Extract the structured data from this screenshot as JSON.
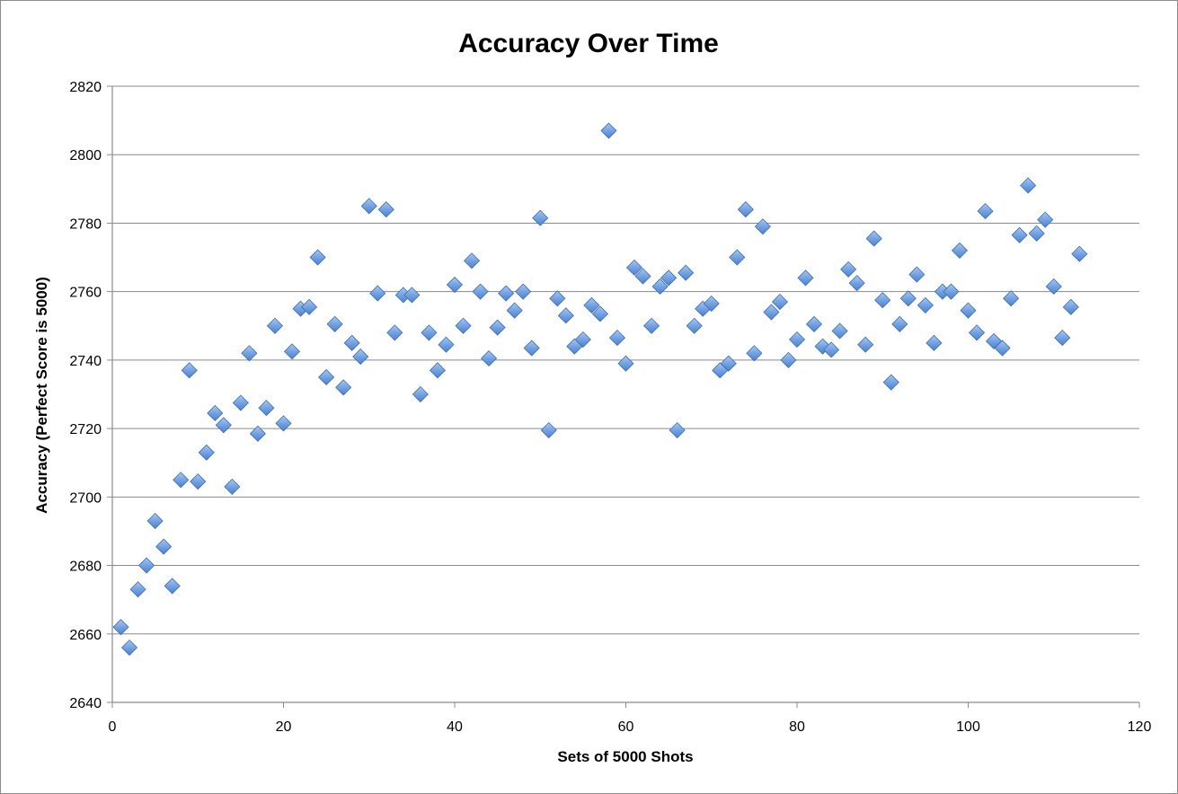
{
  "chart_data": {
    "type": "scatter",
    "title": "Accuracy Over Time",
    "xlabel": "Sets of 5000 Shots",
    "ylabel": "Accuracy (Perfect Score is 5000)",
    "xlim": [
      0,
      120
    ],
    "ylim": [
      2640,
      2820
    ],
    "xticks": [
      0,
      20,
      40,
      60,
      80,
      100,
      120
    ],
    "yticks": [
      2640,
      2660,
      2680,
      2700,
      2720,
      2740,
      2760,
      2780,
      2800,
      2820
    ],
    "grid": "horizontal",
    "legend": "none",
    "marker": "diamond",
    "marker_color": "#6f9fe0",
    "series": [
      {
        "x": [
          1,
          2,
          3,
          4,
          5,
          6,
          7,
          8,
          9,
          10,
          11,
          12,
          13,
          14,
          15,
          16,
          17,
          18,
          19,
          20,
          21,
          22,
          23,
          24,
          25,
          26,
          27,
          28,
          29,
          30,
          31,
          32,
          33,
          34,
          35,
          36,
          37,
          38,
          39,
          40,
          41,
          42,
          43,
          44,
          45,
          46,
          47,
          48,
          49,
          50,
          51,
          52,
          53,
          54,
          55,
          56,
          57,
          58,
          59,
          60,
          61,
          62,
          63,
          64,
          65,
          66,
          67,
          68,
          69,
          70,
          71,
          72,
          73,
          74,
          75,
          76,
          77,
          78,
          79,
          80,
          81,
          82,
          83,
          84,
          85,
          86,
          87,
          88,
          89,
          90,
          91,
          92,
          93,
          94,
          95,
          96,
          97,
          98,
          99,
          100,
          101,
          102,
          103,
          104,
          105,
          106,
          107,
          108,
          109,
          110,
          111,
          112,
          113
        ],
        "y": [
          2662,
          2656,
          2673,
          2680,
          2693,
          2685.5,
          2674,
          2705,
          2737,
          2704.5,
          2713,
          2724.5,
          2721,
          2703,
          2727.5,
          2742,
          2718.5,
          2726,
          2750,
          2721.5,
          2742.5,
          2755,
          2755.5,
          2770,
          2735,
          2750.5,
          2732,
          2745,
          2741,
          2785,
          2759.5,
          2784,
          2748,
          2759,
          2759,
          2730,
          2748,
          2737,
          2744.5,
          2762,
          2750,
          2769,
          2760,
          2740.5,
          2749.5,
          2759.5,
          2754.5,
          2760,
          2743.5,
          2781.5,
          2719.5,
          2758,
          2753,
          2744,
          2746,
          2756,
          2753.5,
          2807,
          2746.5,
          2739,
          2767,
          2764.5,
          2750,
          2761.5,
          2764,
          2719.5,
          2765.5,
          2750,
          2755,
          2756.5,
          2737,
          2739,
          2770,
          2784,
          2742,
          2779,
          2754,
          2757,
          2740,
          2746,
          2764,
          2750.5,
          2744,
          2743,
          2748.5,
          2766.5,
          2762.5,
          2744.5,
          2775.5,
          2757.5,
          2733.5,
          2750.5,
          2758,
          2765,
          2756,
          2745,
          2760,
          2760,
          2772,
          2754.5,
          2748,
          2783.5,
          2745.5,
          2743.5,
          2758,
          2776.5,
          2791,
          2777,
          2781,
          2761.5,
          2746.5,
          2755.5,
          2771
        ]
      }
    ]
  }
}
